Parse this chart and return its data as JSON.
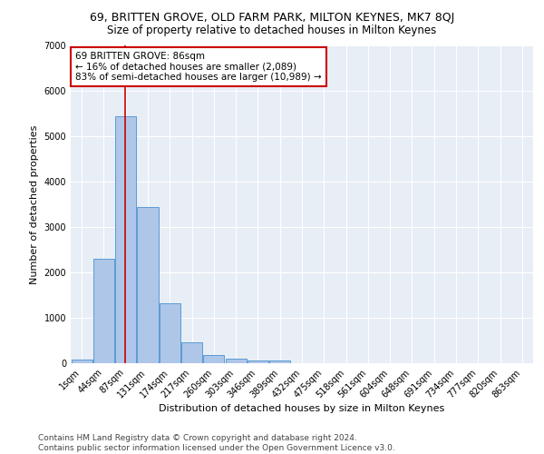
{
  "title1": "69, BRITTEN GROVE, OLD FARM PARK, MILTON KEYNES, MK7 8QJ",
  "title2": "Size of property relative to detached houses in Milton Keynes",
  "xlabel": "Distribution of detached houses by size in Milton Keynes",
  "ylabel": "Number of detached properties",
  "bar_values": [
    75,
    2300,
    5450,
    3450,
    1320,
    460,
    185,
    95,
    65,
    55,
    0,
    0,
    0,
    0,
    0,
    0,
    0,
    0,
    0,
    0,
    0
  ],
  "bar_labels": [
    "1sqm",
    "44sqm",
    "87sqm",
    "131sqm",
    "174sqm",
    "217sqm",
    "260sqm",
    "303sqm",
    "346sqm",
    "389sqm",
    "432sqm",
    "475sqm",
    "518sqm",
    "561sqm",
    "604sqm",
    "648sqm",
    "691sqm",
    "734sqm",
    "777sqm",
    "820sqm",
    "863sqm"
  ],
  "bar_color": "#aec6e8",
  "bar_edge_color": "#5b9bd5",
  "bg_color": "#e8eef5",
  "annotation_text": "69 BRITTEN GROVE: 86sqm\n← 16% of detached houses are smaller (2,089)\n83% of semi-detached houses are larger (10,989) →",
  "annotation_box_color": "#ffffff",
  "annotation_border_color": "#cc0000",
  "vline_color": "#cc0000",
  "ylim": [
    0,
    7000
  ],
  "footer1": "Contains HM Land Registry data © Crown copyright and database right 2024.",
  "footer2": "Contains public sector information licensed under the Open Government Licence v3.0.",
  "title1_fontsize": 9,
  "title2_fontsize": 8.5,
  "axis_label_fontsize": 8,
  "tick_fontsize": 7,
  "footer_fontsize": 6.5,
  "annotation_fontsize": 7.5
}
